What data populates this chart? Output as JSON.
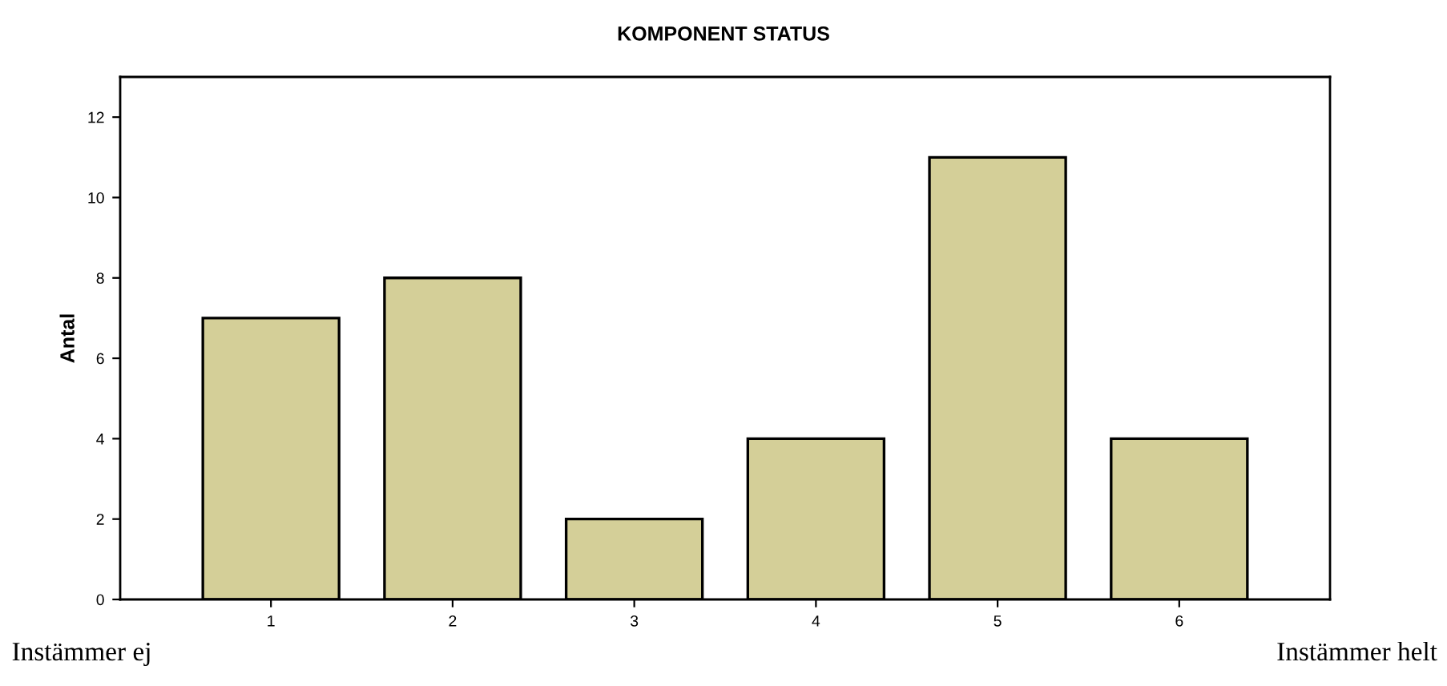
{
  "chart_data": {
    "type": "bar",
    "title": "KOMPONENT STATUS",
    "ylabel": "Antal",
    "categories": [
      "1",
      "2",
      "3",
      "4",
      "5",
      "6"
    ],
    "values": [
      7,
      8,
      2,
      4,
      11,
      4
    ],
    "color": "#d4cf98",
    "ylim": [
      0,
      13
    ],
    "yticks": [
      0,
      2,
      4,
      6,
      8,
      10,
      12
    ],
    "grid": false,
    "legend": false,
    "annotations": [
      "Instämmer ej",
      "Instämmer helt"
    ]
  }
}
